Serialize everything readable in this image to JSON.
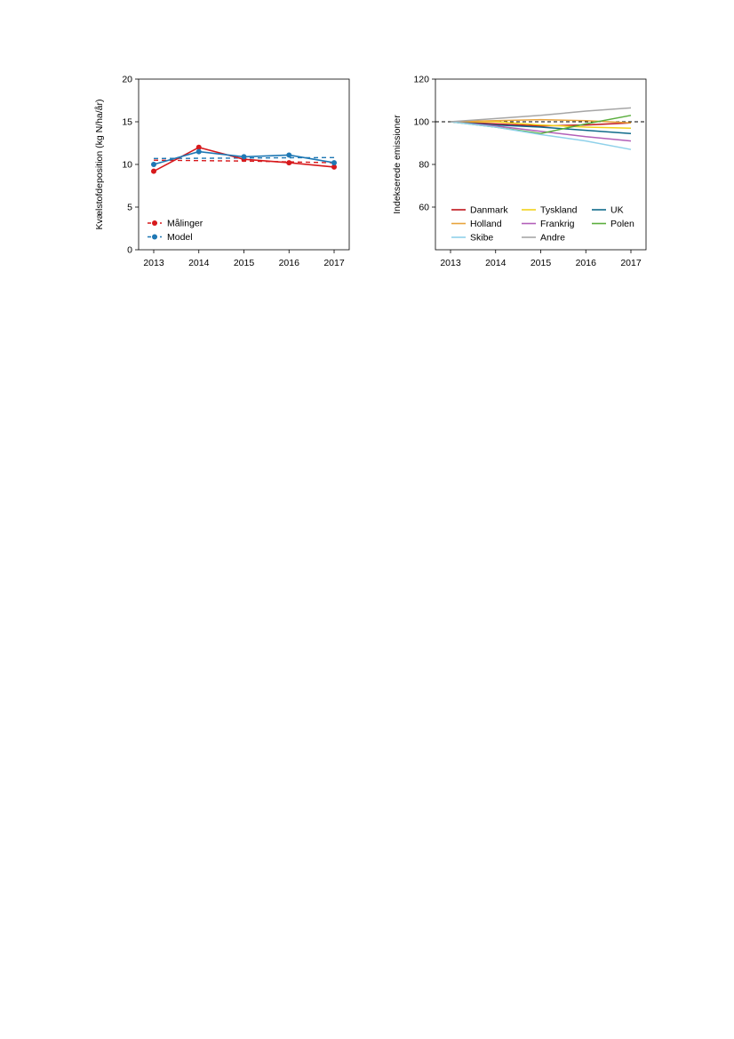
{
  "chart_data": [
    {
      "type": "line",
      "xlabel": "",
      "ylabel": "Kvælstofdeposition (kg N/ha/år)",
      "x": [
        2013,
        2014,
        2015,
        2016,
        2017
      ],
      "xticks": [
        "2013",
        "2014",
        "2015",
        "2016",
        "2017"
      ],
      "ylim": [
        0,
        20
      ],
      "yticks": [
        "0",
        "5",
        "10",
        "15",
        "20"
      ],
      "grid": false,
      "legend": "bottom-left",
      "series": [
        {
          "name": "Målinger",
          "color": "#d7191c",
          "values": [
            9.2,
            12.0,
            10.6,
            10.2,
            9.7
          ],
          "markers": true,
          "trend": [
            10.5,
            10.45,
            10.4,
            10.3,
            10.2
          ]
        },
        {
          "name": "Model",
          "color": "#1f78b4",
          "values": [
            10.0,
            11.5,
            10.9,
            11.1,
            10.2
          ],
          "markers": true,
          "trend": [
            10.7,
            10.72,
            10.75,
            10.78,
            10.8
          ]
        }
      ]
    },
    {
      "type": "line",
      "xlabel": "",
      "ylabel": "Indekserede emissioner",
      "x": [
        2013,
        2014,
        2015,
        2016,
        2017
      ],
      "xticks": [
        "2013",
        "2014",
        "2015",
        "2016",
        "2017"
      ],
      "ylim": [
        40,
        120
      ],
      "yticks": [
        "60",
        "80",
        "100",
        "120"
      ],
      "reference_line": 100,
      "grid": false,
      "legend": "bottom",
      "series": [
        {
          "name": "Danmark",
          "color": "#c0141a",
          "values": [
            100,
            99.0,
            98.0,
            98.5,
            99.5
          ]
        },
        {
          "name": "Tyskland",
          "color": "#f2d21b",
          "values": [
            100,
            100.0,
            98.5,
            97.5,
            97.0
          ]
        },
        {
          "name": "UK",
          "color": "#0f6a8a",
          "values": [
            100,
            98.5,
            97.5,
            96.0,
            94.5
          ]
        },
        {
          "name": "Holland",
          "color": "#e8a33b",
          "values": [
            100,
            100.5,
            101.0,
            100.5,
            99.5
          ]
        },
        {
          "name": "Frankrig",
          "color": "#b25fb8",
          "values": [
            100,
            98.0,
            95.5,
            93.0,
            91.0
          ]
        },
        {
          "name": "Polen",
          "color": "#5aae3d",
          "values": [
            100,
            97.5,
            94.5,
            99.0,
            103.0
          ]
        },
        {
          "name": "Skibe",
          "color": "#8fd1ea",
          "values": [
            100,
            97.5,
            94.0,
            91.0,
            87.0
          ]
        },
        {
          "name": "Andre",
          "color": "#a6a6a6",
          "values": [
            100,
            101.5,
            103.0,
            105.0,
            106.5
          ]
        }
      ]
    }
  ]
}
